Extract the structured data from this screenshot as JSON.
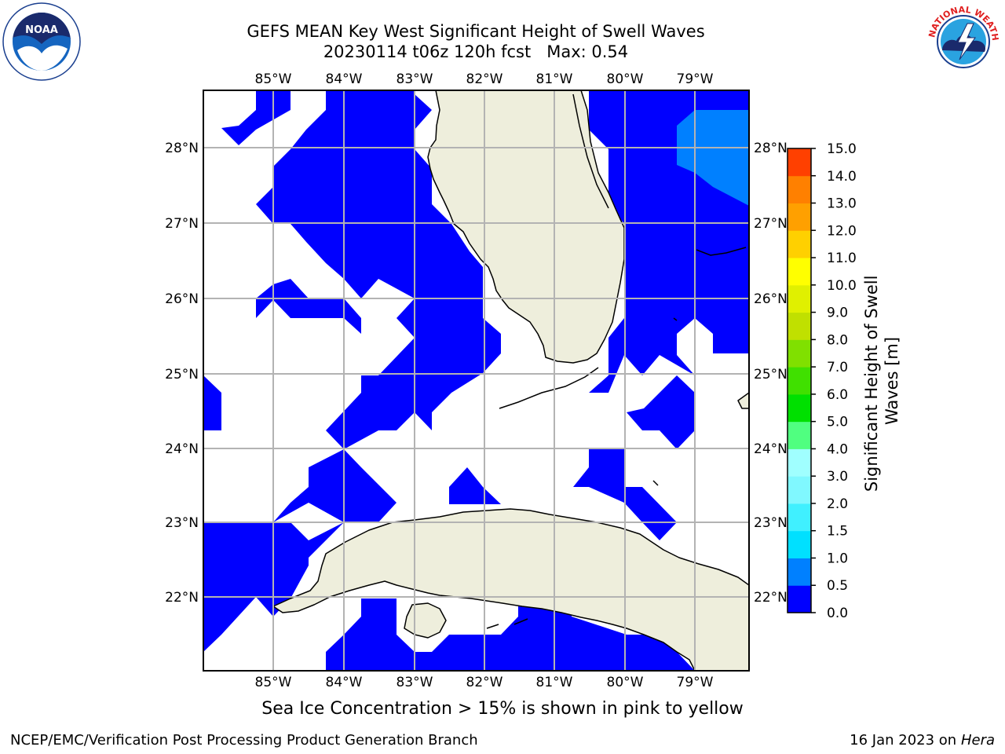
{
  "title_line1": "GEFS MEAN Key West Significant Height of Swell Waves",
  "title_line2": "20230114 t06z 120h fcst   Max: 0.54",
  "map": {
    "lon_ticks": [
      "85°W",
      "84°W",
      "83°W",
      "82°W",
      "81°W",
      "80°W",
      "79°W"
    ],
    "lat_ticks": [
      "28°N",
      "27°N",
      "26°N",
      "25°N",
      "24°N",
      "23°N",
      "22°N"
    ],
    "lon_range": [
      -86.0,
      -78.3
    ],
    "lat_range": [
      21.05,
      28.75
    ],
    "grid": true,
    "land_color": "#eeeedc",
    "water_low_color": "#0000ff",
    "water_mid_color": "#0080ff"
  },
  "colorbar": {
    "label": "Significant Height of Swell Waves [m]",
    "ticks": [
      "0.0",
      "0.5",
      "1.0",
      "1.5",
      "2.0",
      "3.0",
      "4.0",
      "5.0",
      "6.0",
      "7.0",
      "8.0",
      "9.0",
      "10.0",
      "11.0",
      "12.0",
      "13.0",
      "14.0",
      "15.0"
    ],
    "colors": [
      "#0000ff",
      "#0080ff",
      "#00e0ff",
      "#40f0ff",
      "#80f8ff",
      "#a0ffff",
      "#50ff80",
      "#00e000",
      "#40e000",
      "#80e000",
      "#c0e000",
      "#e0f000",
      "#ffff00",
      "#ffd000",
      "#ffa000",
      "#ff8000",
      "#ff4000",
      "#ff0000"
    ]
  },
  "sea_ice_note": "Sea Ice Concentration > 15% is shown in pink to yellow",
  "footer_left": "NCEP/EMC/Verification Post Processing Product Generation Branch",
  "footer_date": "16 Jan 2023 on",
  "footer_host": "Hera",
  "logos": {
    "noaa_text": "NOAA",
    "noaa_ring_text": "NATIONAL OCEANIC AND ATMOSPHERIC ADMINISTRATION",
    "noaa_ring_bottom": "U.S. DEPARTMENT OF COMMERCE",
    "nws_ring_text": "NATIONAL WEATHER SERVICE"
  }
}
